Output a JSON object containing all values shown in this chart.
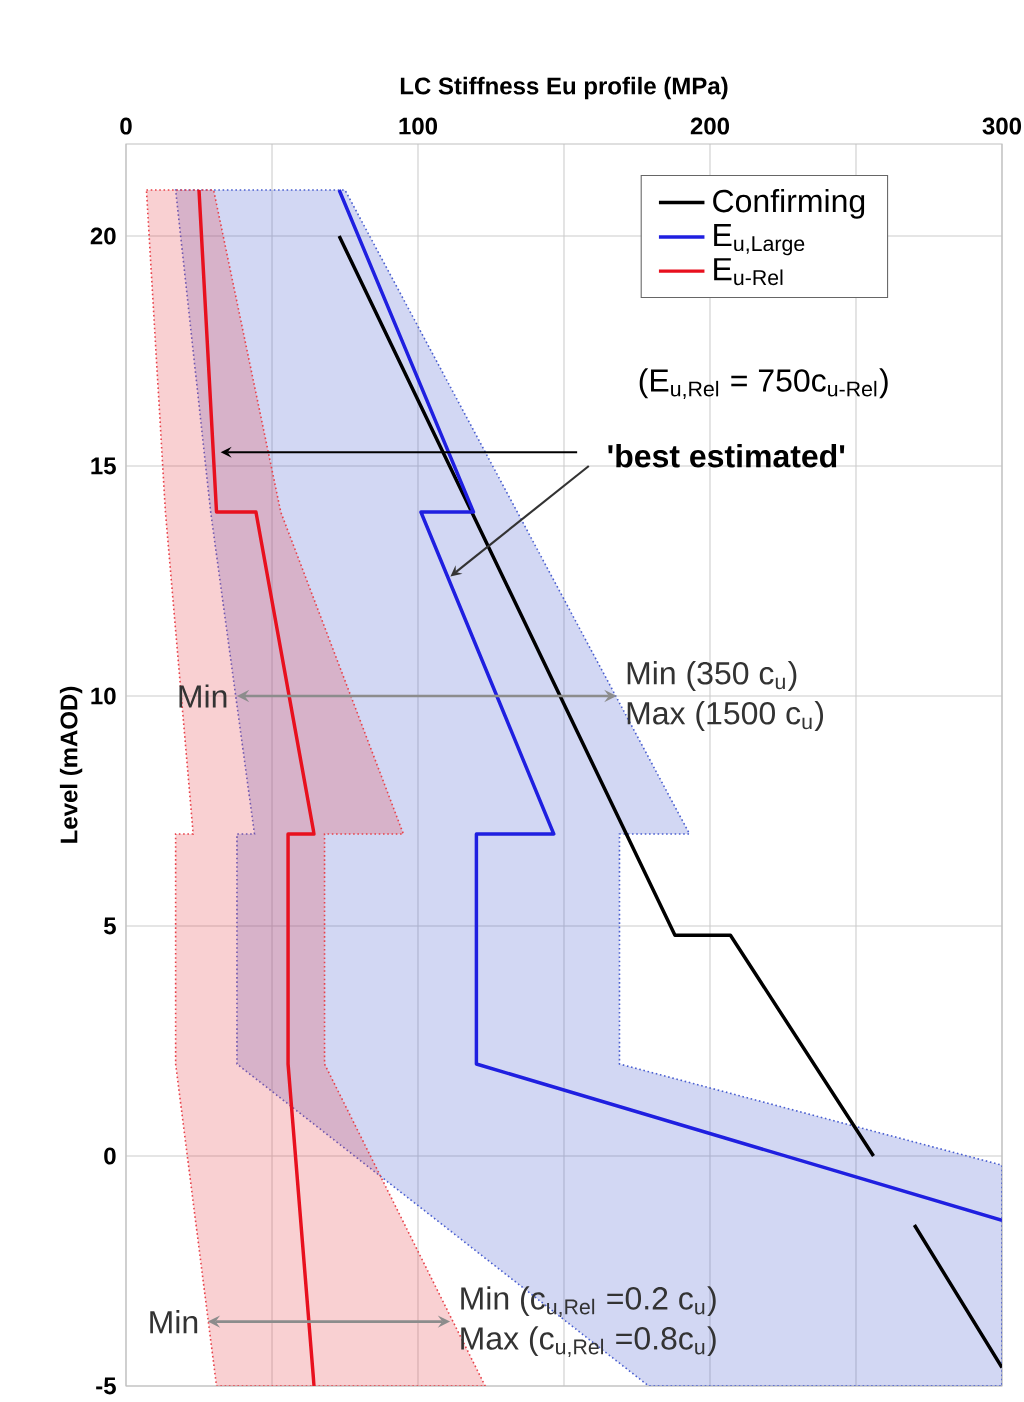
{
  "chart_data": {
    "type": "line",
    "xlabel": "LC Stiffness Eu profile (MPa)",
    "ylabel": "Level (mAOD)",
    "xlim": [
      0,
      300
    ],
    "ylim": [
      -5,
      22
    ],
    "xticks": [
      0,
      {
        "value": 50,
        "label": null
      },
      100,
      {
        "value": 150,
        "label": null
      },
      200,
      {
        "value": 250,
        "label": null
      },
      300
    ],
    "yticks": [
      -5,
      0,
      5,
      10,
      15,
      20
    ],
    "grid": true,
    "legend": "top right",
    "series": [
      {
        "type": "area",
        "color": "#4a5fd0",
        "line_style": "dotted",
        "x": [
          17,
          75,
          193,
          169,
          169,
          300,
          300,
          179,
          38,
          38,
          44,
          29,
          17
        ],
        "values": [
          21,
          21,
          7,
          7,
          2,
          -0.2,
          -5,
          -5,
          2,
          7,
          7,
          14,
          21
        ]
      },
      {
        "type": "area",
        "color": "#e8424a",
        "line_style": "dotted",
        "x": [
          7,
          30,
          53,
          95,
          68,
          68,
          123,
          31,
          17,
          17,
          23,
          13.5,
          7
        ],
        "values": [
          21,
          21,
          14,
          7,
          7,
          2,
          -5,
          -5,
          2,
          7,
          7,
          14,
          21
        ]
      },
      {
        "name": "Confirming",
        "color": "#000000",
        "x": [
          73,
          188,
          207,
          256,
          null,
          270,
          300
        ],
        "values": [
          20,
          4.8,
          4.8,
          0,
          null,
          -1.5,
          -4.6
        ]
      },
      {
        "name": "E$_{u,Large}$",
        "color": "#1f1fe0",
        "x": [
          73,
          119,
          101,
          146.5,
          120,
          120,
          300
        ],
        "values": [
          21,
          14,
          14,
          7,
          7,
          2,
          -1.4
        ]
      },
      {
        "name": "E$_{u-Rel}$",
        "color": "#e8101e",
        "x": [
          25,
          31,
          44.5,
          64.4,
          55.5,
          55.5,
          64.4
        ],
        "values": [
          21,
          14,
          14,
          7,
          7,
          2,
          -5
        ]
      }
    ],
    "annotations": [
      "(E$_{u,Rel}$ = 750c$_{u-Rel}$)",
      {
        "text": "'best estimated'",
        "x": 30.4,
        "y": 15.3
      },
      {
        "text": "Min",
        "x": 38,
        "y": 10
      },
      {
        "text": "Min (350 c$_{u}$)",
        "x": 168,
        "y": 10
      },
      {
        "text": "Max (1500 c$_{u}$)",
        "x": 168,
        "y": 10
      },
      {
        "text": "Min",
        "x": 28,
        "y": -3.6
      },
      {
        "text": "Min (c$_{u,Rel}$ =0.2 c$_{u}$)",
        "x": 111,
        "y": -3.6
      },
      {
        "text": "Max (c$_{u,Rel}$ =0.8c$_{u}$)",
        "x": 111,
        "y": -3.6
      }
    ]
  }
}
